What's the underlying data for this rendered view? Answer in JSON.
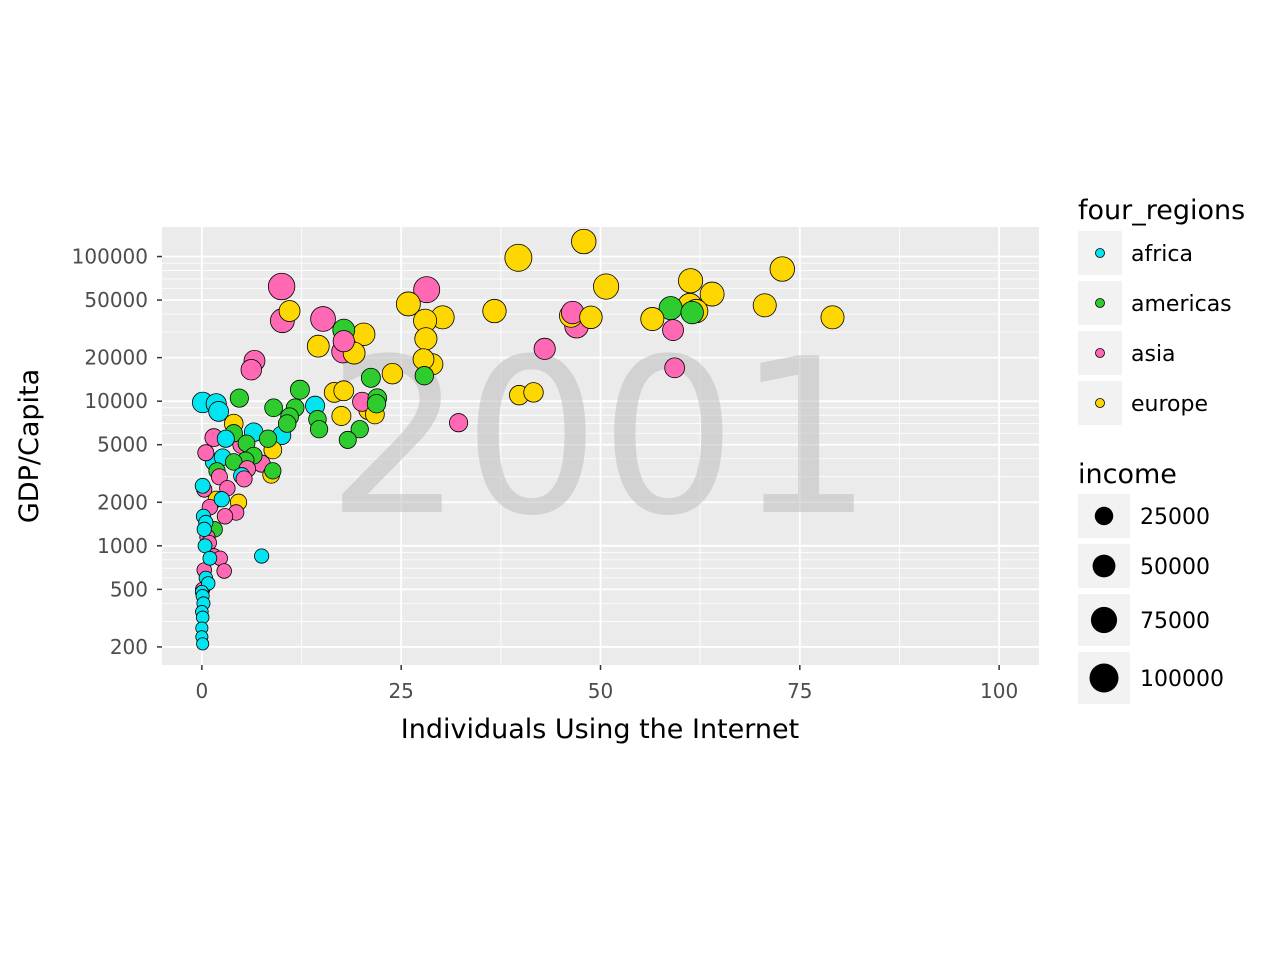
{
  "chart_data": {
    "type": "scatter",
    "title": "",
    "watermark": "2001",
    "xlabel": "Individuals Using the Internet",
    "ylabel": "GDP/Capita",
    "xlim": [
      -5,
      105
    ],
    "ylim": [
      150,
      160000
    ],
    "yscale": "log10",
    "x_ticks": [
      0,
      25,
      50,
      75,
      100
    ],
    "y_ticks": [
      200,
      500,
      1000,
      2000,
      5000,
      10000,
      20000,
      50000,
      100000
    ],
    "grid": true,
    "legend_position": "right",
    "colors": {
      "africa": "#00e5f0",
      "americas": "#2ecc2e",
      "asia": "#ff69b4",
      "europe": "#ffd700",
      "panel_bg": "#ebebeb",
      "grid": "#ffffff",
      "point_stroke": "#000000"
    },
    "color_legend": {
      "title": "four_regions",
      "entries": [
        "africa",
        "americas",
        "asia",
        "europe"
      ]
    },
    "size_legend": {
      "title": "income",
      "entries": [
        25000,
        50000,
        75000,
        100000
      ]
    },
    "series": [
      {
        "name": "africa",
        "points": [
          {
            "x": 0.1,
            "y": 9800,
            "income": 36000
          },
          {
            "x": 1.8,
            "y": 9600,
            "income": 34000
          },
          {
            "x": 2.1,
            "y": 8500,
            "income": 32000
          },
          {
            "x": 6.5,
            "y": 6100,
            "income": 26000
          },
          {
            "x": 10.0,
            "y": 5800,
            "income": 25000
          },
          {
            "x": 14.2,
            "y": 9300,
            "income": 28000
          },
          {
            "x": 1.5,
            "y": 3800,
            "income": 18000
          },
          {
            "x": 2.6,
            "y": 4100,
            "income": 17000
          },
          {
            "x": 3.0,
            "y": 5500,
            "income": 19000
          },
          {
            "x": 5.0,
            "y": 3050,
            "income": 16000
          },
          {
            "x": 0.1,
            "y": 2600,
            "income": 11000
          },
          {
            "x": 2.5,
            "y": 2100,
            "income": 12000
          },
          {
            "x": 0.2,
            "y": 1600,
            "income": 9000
          },
          {
            "x": 0.5,
            "y": 1450,
            "income": 9000
          },
          {
            "x": 0.3,
            "y": 1300,
            "income": 9000
          },
          {
            "x": 0.4,
            "y": 1000,
            "income": 8000
          },
          {
            "x": 7.5,
            "y": 850,
            "income": 9000
          },
          {
            "x": 1.0,
            "y": 820,
            "income": 8000
          },
          {
            "x": 0.5,
            "y": 600,
            "income": 7000
          },
          {
            "x": 0.8,
            "y": 550,
            "income": 7000
          },
          {
            "x": 0.0,
            "y": 480,
            "income": 6000
          },
          {
            "x": 0.1,
            "y": 450,
            "income": 6000
          },
          {
            "x": 0.2,
            "y": 400,
            "income": 6000
          },
          {
            "x": 0.0,
            "y": 350,
            "income": 5000
          },
          {
            "x": 0.1,
            "y": 320,
            "income": 5000
          },
          {
            "x": 0.0,
            "y": 270,
            "income": 4000
          },
          {
            "x": 0.0,
            "y": 235,
            "income": 4000
          },
          {
            "x": 0.1,
            "y": 210,
            "income": 4000
          }
        ]
      },
      {
        "name": "americas",
        "points": [
          {
            "x": 58.8,
            "y": 44000,
            "income": 52000
          },
          {
            "x": 61.5,
            "y": 41000,
            "income": 48000
          },
          {
            "x": 17.8,
            "y": 31000,
            "income": 44000
          },
          {
            "x": 12.3,
            "y": 12000,
            "income": 28000
          },
          {
            "x": 21.2,
            "y": 14500,
            "income": 28000
          },
          {
            "x": 27.9,
            "y": 15000,
            "income": 25000
          },
          {
            "x": 4.7,
            "y": 10500,
            "income": 24000
          },
          {
            "x": 9.0,
            "y": 9000,
            "income": 22000
          },
          {
            "x": 11.7,
            "y": 9000,
            "income": 22000
          },
          {
            "x": 22.0,
            "y": 10500,
            "income": 26000
          },
          {
            "x": 21.9,
            "y": 9600,
            "income": 25000
          },
          {
            "x": 11.0,
            "y": 7800,
            "income": 22000
          },
          {
            "x": 10.7,
            "y": 7000,
            "income": 21000
          },
          {
            "x": 14.5,
            "y": 7500,
            "income": 21000
          },
          {
            "x": 14.7,
            "y": 6400,
            "income": 20000
          },
          {
            "x": 19.8,
            "y": 6400,
            "income": 20000
          },
          {
            "x": 18.3,
            "y": 5400,
            "income": 19000
          },
          {
            "x": 4.0,
            "y": 6000,
            "income": 20000
          },
          {
            "x": 8.3,
            "y": 5500,
            "income": 20000
          },
          {
            "x": 5.6,
            "y": 5100,
            "income": 18000
          },
          {
            "x": 6.5,
            "y": 4200,
            "income": 18000
          },
          {
            "x": 5.5,
            "y": 3900,
            "income": 17000
          },
          {
            "x": 4.0,
            "y": 3800,
            "income": 17000
          },
          {
            "x": 8.9,
            "y": 3300,
            "income": 16000
          },
          {
            "x": 1.9,
            "y": 3300,
            "income": 16000
          },
          {
            "x": 1.6,
            "y": 1300,
            "income": 13000
          }
        ]
      },
      {
        "name": "asia",
        "points": [
          {
            "x": 10.0,
            "y": 62000,
            "income": 78000
          },
          {
            "x": 28.2,
            "y": 59000,
            "income": 74000
          },
          {
            "x": 10.1,
            "y": 36000,
            "income": 58000
          },
          {
            "x": 15.2,
            "y": 37000,
            "income": 64000
          },
          {
            "x": 17.7,
            "y": 22000,
            "income": 48000
          },
          {
            "x": 17.8,
            "y": 26000,
            "income": 40000
          },
          {
            "x": 46.5,
            "y": 41000,
            "income": 48000
          },
          {
            "x": 47.0,
            "y": 33000,
            "income": 56000
          },
          {
            "x": 43.0,
            "y": 23000,
            "income": 40000
          },
          {
            "x": 59.1,
            "y": 31000,
            "income": 38000
          },
          {
            "x": 59.3,
            "y": 17000,
            "income": 32000
          },
          {
            "x": 32.2,
            "y": 7100,
            "income": 24000
          },
          {
            "x": 20.1,
            "y": 9900,
            "income": 28000
          },
          {
            "x": 6.6,
            "y": 19000,
            "income": 38000
          },
          {
            "x": 6.2,
            "y": 16500,
            "income": 36000
          },
          {
            "x": 1.5,
            "y": 5600,
            "income": 22000
          },
          {
            "x": 5.0,
            "y": 5000,
            "income": 22000
          },
          {
            "x": 7.5,
            "y": 3700,
            "income": 19000
          },
          {
            "x": 5.7,
            "y": 3400,
            "income": 17000
          },
          {
            "x": 0.5,
            "y": 4400,
            "income": 15000
          },
          {
            "x": 2.2,
            "y": 3000,
            "income": 15000
          },
          {
            "x": 5.3,
            "y": 2900,
            "income": 15000
          },
          {
            "x": 3.2,
            "y": 2500,
            "income": 13000
          },
          {
            "x": 0.3,
            "y": 2450,
            "income": 12000
          },
          {
            "x": 4.3,
            "y": 1700,
            "income": 13000
          },
          {
            "x": 2.9,
            "y": 1600,
            "income": 13000
          },
          {
            "x": 1.0,
            "y": 1850,
            "income": 13000
          },
          {
            "x": 0.7,
            "y": 1150,
            "income": 12000
          },
          {
            "x": 0.9,
            "y": 1050,
            "income": 11000
          },
          {
            "x": 1.5,
            "y": 850,
            "income": 11000
          },
          {
            "x": 2.3,
            "y": 820,
            "income": 10000
          },
          {
            "x": 2.8,
            "y": 670,
            "income": 10000
          },
          {
            "x": 0.3,
            "y": 680,
            "income": 10000
          },
          {
            "x": 0.1,
            "y": 500,
            "income": 9000
          }
        ]
      },
      {
        "name": "europe",
        "points": [
          {
            "x": 47.9,
            "y": 127000,
            "income": 62000
          },
          {
            "x": 39.7,
            "y": 98000,
            "income": 82000
          },
          {
            "x": 72.8,
            "y": 82000,
            "income": 62000
          },
          {
            "x": 61.3,
            "y": 68000,
            "income": 60000
          },
          {
            "x": 50.7,
            "y": 62000,
            "income": 68000
          },
          {
            "x": 64.0,
            "y": 55000,
            "income": 58000
          },
          {
            "x": 25.9,
            "y": 47000,
            "income": 58000
          },
          {
            "x": 61.2,
            "y": 46000,
            "income": 58000
          },
          {
            "x": 70.6,
            "y": 46000,
            "income": 52000
          },
          {
            "x": 36.7,
            "y": 42000,
            "income": 54000
          },
          {
            "x": 62.0,
            "y": 42000,
            "income": 54000
          },
          {
            "x": 11.0,
            "y": 42000,
            "income": 38000
          },
          {
            "x": 46.3,
            "y": 39000,
            "income": 52000
          },
          {
            "x": 48.8,
            "y": 38000,
            "income": 48000
          },
          {
            "x": 30.2,
            "y": 38000,
            "income": 52000
          },
          {
            "x": 79.1,
            "y": 38000,
            "income": 52000
          },
          {
            "x": 56.5,
            "y": 37000,
            "income": 52000
          },
          {
            "x": 28.0,
            "y": 36000,
            "income": 52000
          },
          {
            "x": 20.3,
            "y": 29000,
            "income": 48000
          },
          {
            "x": 28.1,
            "y": 27000,
            "income": 46000
          },
          {
            "x": 14.6,
            "y": 24000,
            "income": 44000
          },
          {
            "x": 19.1,
            "y": 21500,
            "income": 44000
          },
          {
            "x": 28.9,
            "y": 18000,
            "income": 40000
          },
          {
            "x": 27.8,
            "y": 19500,
            "income": 38000
          },
          {
            "x": 23.9,
            "y": 15500,
            "income": 36000
          },
          {
            "x": 16.6,
            "y": 11500,
            "income": 32000
          },
          {
            "x": 17.8,
            "y": 11800,
            "income": 32000
          },
          {
            "x": 39.8,
            "y": 11000,
            "income": 30000
          },
          {
            "x": 41.6,
            "y": 11500,
            "income": 30000
          },
          {
            "x": 20.9,
            "y": 8700,
            "income": 30000
          },
          {
            "x": 17.5,
            "y": 7900,
            "income": 28000
          },
          {
            "x": 21.7,
            "y": 8100,
            "income": 27000
          },
          {
            "x": 4.0,
            "y": 7000,
            "income": 26000
          },
          {
            "x": 8.9,
            "y": 4600,
            "income": 22000
          },
          {
            "x": 8.7,
            "y": 3100,
            "income": 18000
          },
          {
            "x": 4.6,
            "y": 2000,
            "income": 16000
          },
          {
            "x": 1.8,
            "y": 2100,
            "income": 15000
          }
        ]
      }
    ]
  }
}
